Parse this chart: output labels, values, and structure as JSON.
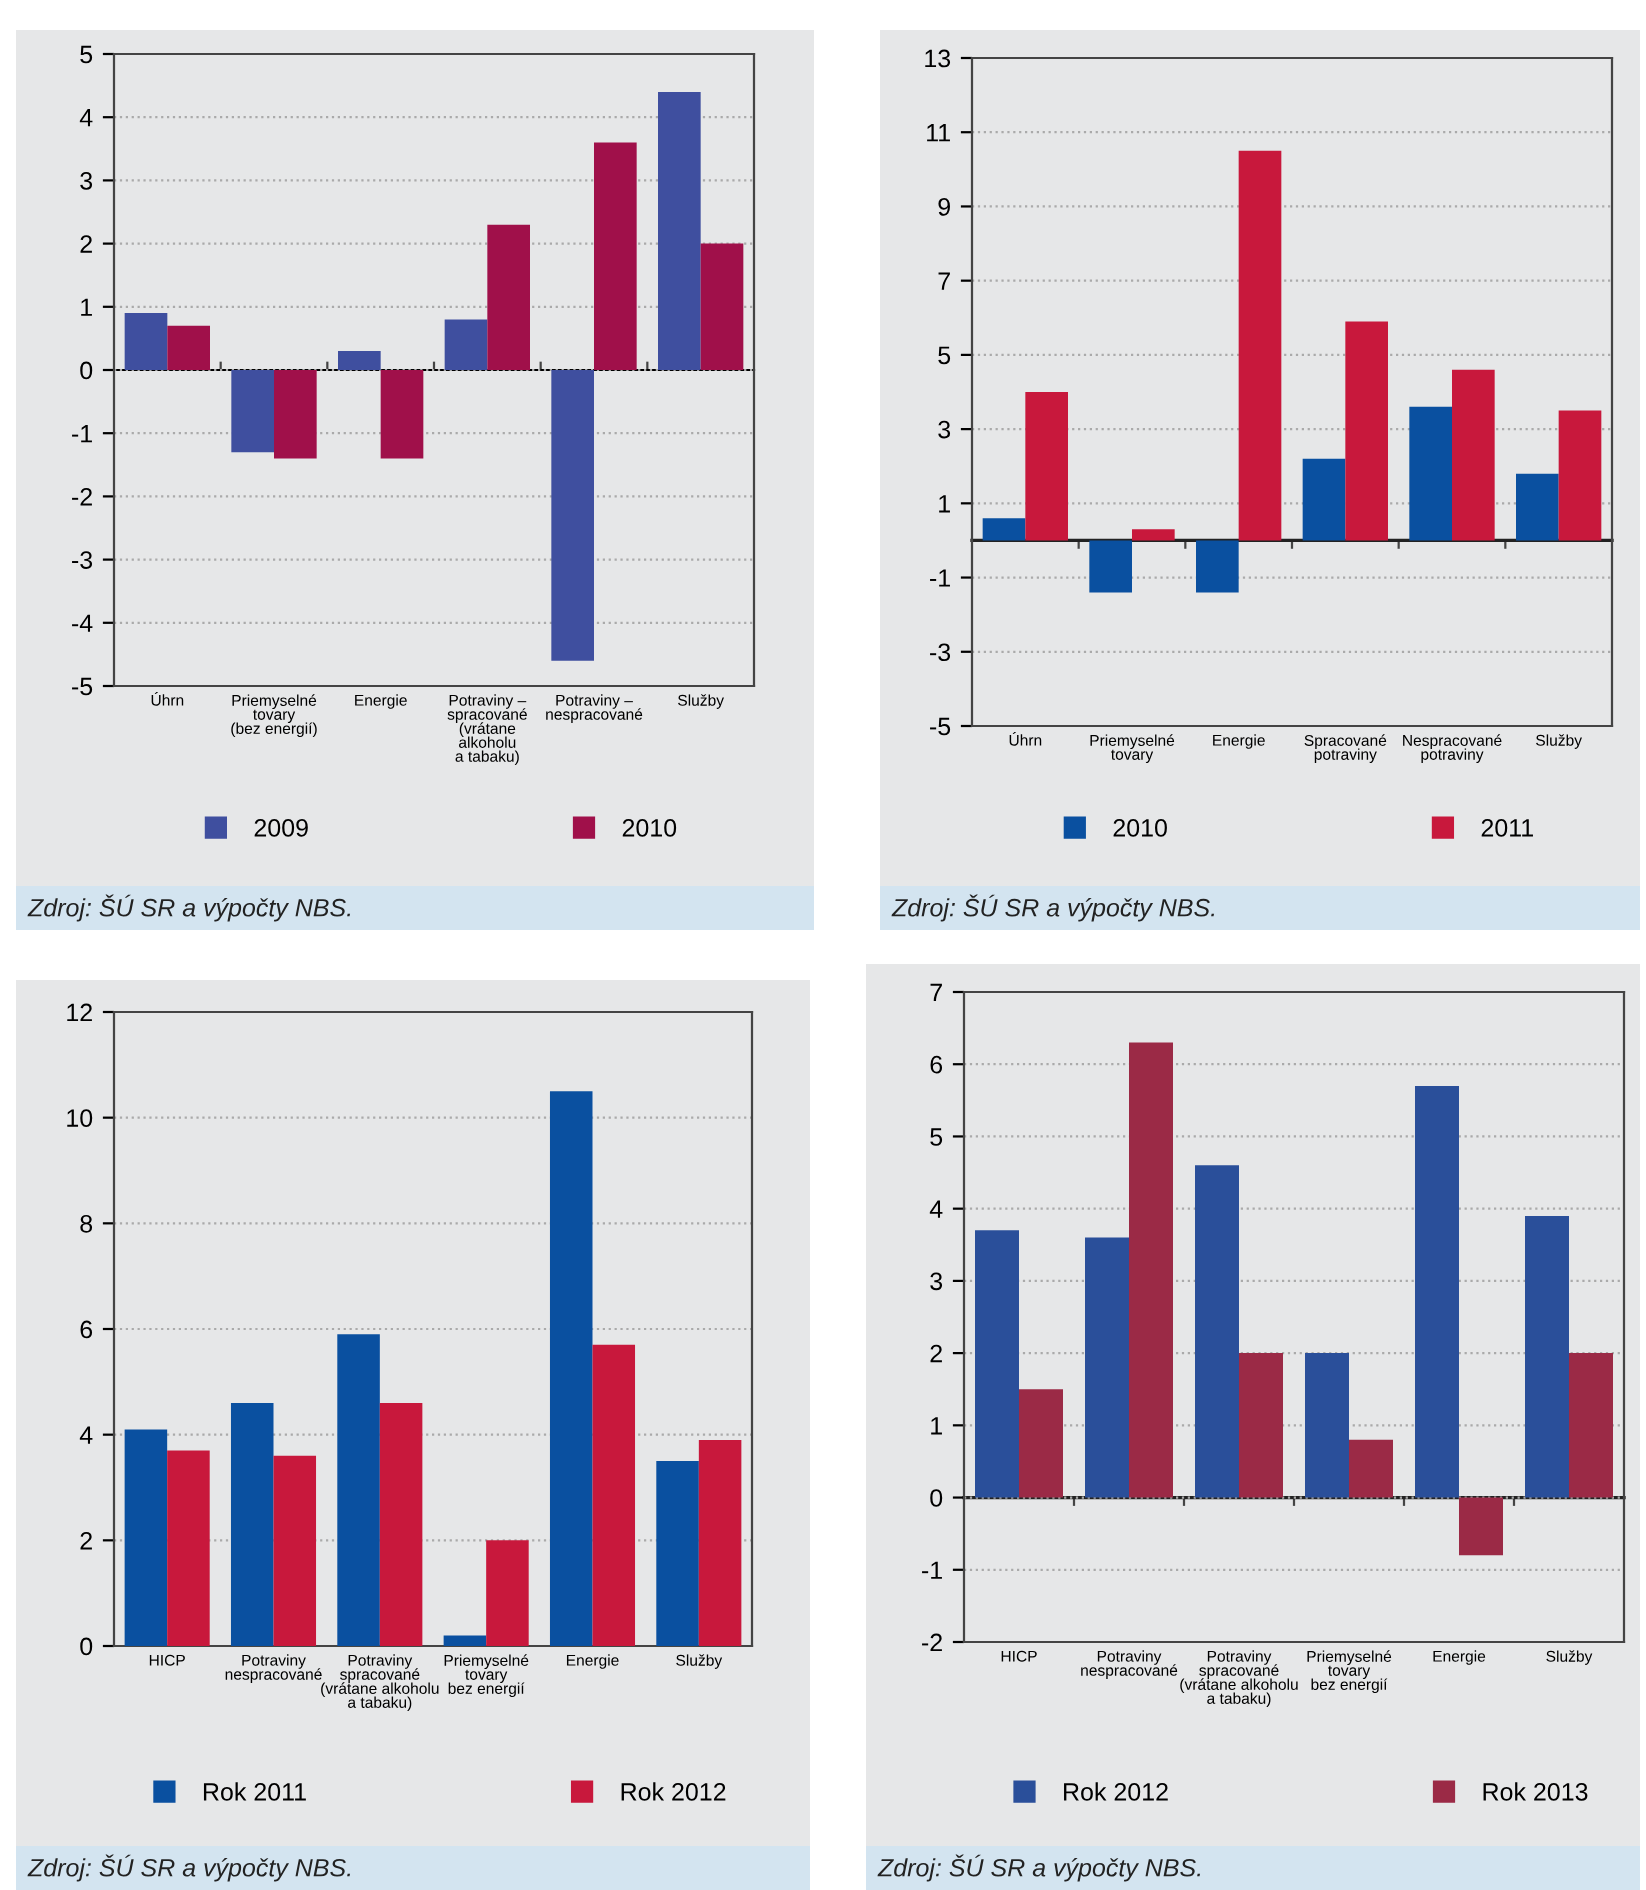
{
  "chart_data": [
    {
      "type": "bar",
      "categories": [
        "Úhrn",
        "Priemyselné\ntovary\n(bez energií)",
        "Energie",
        "Potraviny –\nspracované\n(vrátane\nalkoholu\na tabaku)",
        "Potraviny –\nnespracované",
        "Služby"
      ],
      "series": [
        {
          "name": "2009",
          "color": "#3f4f9f",
          "values": [
            0.9,
            -1.3,
            0.3,
            0.8,
            -4.6,
            4.4
          ]
        },
        {
          "name": "2010",
          "color": "#a0104a",
          "values": [
            0.7,
            -1.4,
            -1.4,
            2.3,
            3.6,
            2.0
          ]
        }
      ],
      "ylim": [
        -5,
        5
      ],
      "yticks": [
        -5,
        -4,
        -3,
        -2,
        -1,
        0,
        1,
        2,
        3,
        4,
        5
      ],
      "grid": "y",
      "legend": "bottom",
      "annotations": [
        "Zdroj: ŠÚ SR a výpočty NBS."
      ]
    },
    {
      "type": "bar",
      "categories": [
        "Úhrn",
        "Priemyselné\ntovary",
        "Energie",
        "Spracované\npotraviny",
        "Nespracované\npotraviny",
        "Služby"
      ],
      "series": [
        {
          "name": "2010",
          "color": "#0a50a0",
          "values": [
            0.6,
            -1.4,
            -1.4,
            2.2,
            3.6,
            1.8
          ]
        },
        {
          "name": "2011",
          "color": "#c8183c",
          "values": [
            4.0,
            0.3,
            10.5,
            5.9,
            4.6,
            3.5
          ]
        }
      ],
      "ylim": [
        -5,
        13
      ],
      "yticks": [
        -5,
        -3,
        -1,
        1,
        3,
        5,
        7,
        9,
        11,
        13
      ],
      "grid": "y",
      "legend": "bottom",
      "annotations": [
        "Zdroj: ŠÚ SR a výpočty NBS."
      ]
    },
    {
      "type": "bar",
      "categories": [
        "HICP",
        "Potraviny\nnespracované",
        "Potraviny\nspracované\n(vrátane alkoholu\na tabaku)",
        "Priemyselné\ntovary\nbez energií",
        "Energie",
        "Služby"
      ],
      "series": [
        {
          "name": "Rok 2011",
          "color": "#0a50a0",
          "values": [
            4.1,
            4.6,
            5.9,
            0.2,
            10.5,
            3.5
          ]
        },
        {
          "name": "Rok 2012",
          "color": "#c8183c",
          "values": [
            3.7,
            3.6,
            4.6,
            2.0,
            5.7,
            3.9
          ]
        }
      ],
      "ylim": [
        0,
        12
      ],
      "yticks": [
        0,
        2,
        4,
        6,
        8,
        10,
        12
      ],
      "grid": "y",
      "legend": "bottom",
      "annotations": [
        "Zdroj: ŠÚ SR a výpočty NBS."
      ]
    },
    {
      "type": "bar",
      "categories": [
        "HICP",
        "Potraviny\nnespracované",
        "Potraviny\nspracované\n(vrátane alkoholu\na tabaku)",
        "Priemyselné\ntovary\nbez energií",
        "Energie",
        "Služby"
      ],
      "series": [
        {
          "name": "Rok 2012",
          "color": "#2a4f9a",
          "values": [
            3.7,
            3.6,
            4.6,
            2.0,
            5.7,
            3.9
          ]
        },
        {
          "name": "Rok 2013",
          "color": "#9b2a46",
          "values": [
            1.5,
            6.3,
            2.0,
            0.8,
            -0.8,
            2.0
          ]
        }
      ],
      "ylim": [
        -2,
        7
      ],
      "yticks": [
        -2,
        -1,
        0,
        1,
        2,
        3,
        4,
        5,
        6,
        7
      ],
      "grid": "y",
      "legend": "bottom",
      "annotations": [
        "Zdroj: ŠÚ SR a výpočty NBS."
      ]
    }
  ]
}
